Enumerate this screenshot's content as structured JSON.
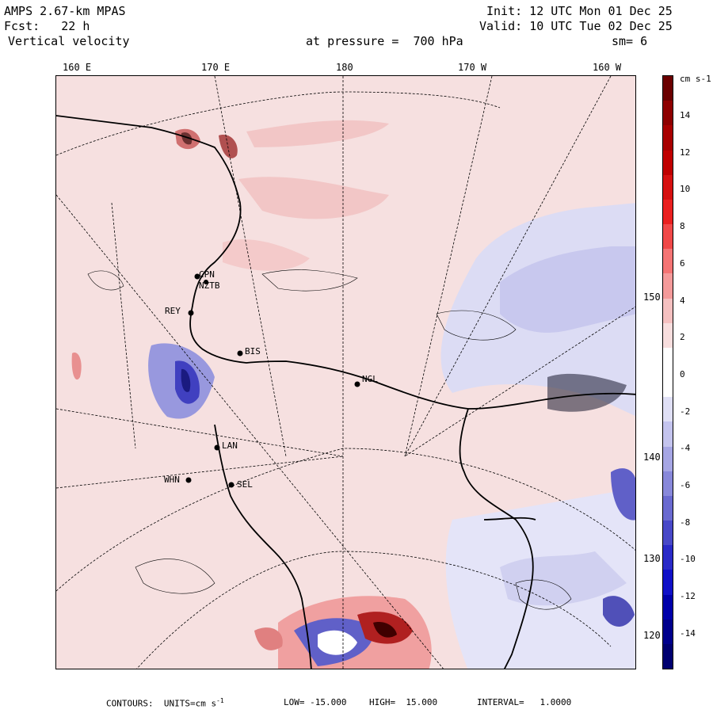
{
  "header": {
    "model": "AMPS 2.67-km MPAS",
    "fcst": "Fcst:   22 h",
    "variable": "Vertical velocity",
    "init": "Init: 12 UTC Mon 01 Dec 25",
    "valid": "Valid: 10 UTC Tue 02 Dec 25",
    "pressure": "at pressure =  700 hPa",
    "smoothing": "sm= 6"
  },
  "longitudes": [
    "160 E",
    "170 E",
    "180",
    "170 W",
    "160 W"
  ],
  "latitudes": [
    "150 W",
    "140 W",
    "130 W",
    "120 W"
  ],
  "stations": [
    "CPN",
    "NZTB",
    "REY",
    "BIS",
    "NGL",
    "LAN",
    "WHN",
    "SEL"
  ],
  "colorbar": {
    "unit": "cm s-1",
    "labels": [
      "14",
      "12",
      "10",
      "8",
      "6",
      "4",
      "2",
      "0",
      "-2",
      "-4",
      "-6",
      "-8",
      "-10",
      "-12",
      "-14"
    ],
    "colors": [
      "#6b0000",
      "#8e0000",
      "#a80000",
      "#c00000",
      "#d61010",
      "#ea2020",
      "#f04848",
      "#f47474",
      "#f49a9a",
      "#f5c0c0",
      "#f8dede",
      "#ffffff",
      "#ffffff",
      "#e0e0f6",
      "#c4c4ee",
      "#a6a6e4",
      "#8888da",
      "#6a6ad0",
      "#4848c8",
      "#2a2ac8",
      "#1010c8",
      "#0000aa",
      "#00008c",
      "#000070"
    ]
  },
  "footer": {
    "contours": "CONTOURS:  UNITS=cm s",
    "exponent": "-1",
    "low": "LOW= -15.000",
    "high": "HIGH=  15.000",
    "interval": "INTERVAL=   1.0000"
  }
}
